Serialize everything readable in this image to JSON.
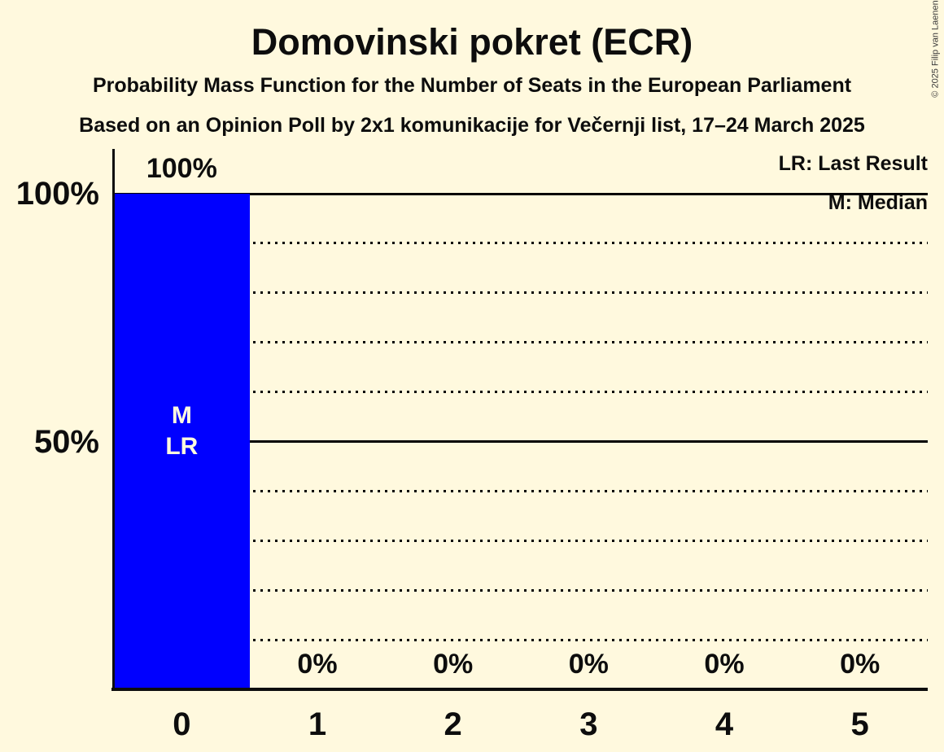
{
  "header": {
    "title": "Domovinski pokret (ECR)",
    "subtitle_line1": "Probability Mass Function for the Number of Seats in the European Parliament",
    "subtitle_line2": "Based on an Opinion Poll by 2x1 komunikacije for Večernji list, 17–24 March 2025"
  },
  "legend": {
    "last_result_label": "LR: Last Result",
    "median_label": "M: Median"
  },
  "copyright": "© 2025 Filip van Laenen",
  "colors": {
    "background": "#FFF9DE",
    "bar": "#0000FF",
    "text": "#0D0D0D",
    "bar_text": "#FFF9DE",
    "gridline": "#000000"
  },
  "chart_data": {
    "type": "bar",
    "title": "Domovinski pokret (ECR)",
    "categories": [
      "0",
      "1",
      "2",
      "3",
      "4",
      "5"
    ],
    "values": [
      100,
      0,
      0,
      0,
      0,
      0
    ],
    "value_labels": [
      "100%",
      "0%",
      "0%",
      "0%",
      "0%",
      "0%"
    ],
    "xlabel": "",
    "ylabel": "",
    "ylim": [
      0,
      100
    ],
    "yticks": [
      {
        "value": 100,
        "label": "100%"
      },
      {
        "value": 50,
        "label": "50%"
      }
    ],
    "solid_gridlines": [
      100,
      50
    ],
    "dotted_gridlines": [
      90,
      80,
      70,
      60,
      40,
      30,
      20,
      10
    ],
    "grid": true,
    "legend_position": "top-right",
    "median_seats": 0,
    "last_result_seats": 0,
    "annotated_category": "0",
    "annotation_lines": [
      "M",
      "LR"
    ]
  }
}
